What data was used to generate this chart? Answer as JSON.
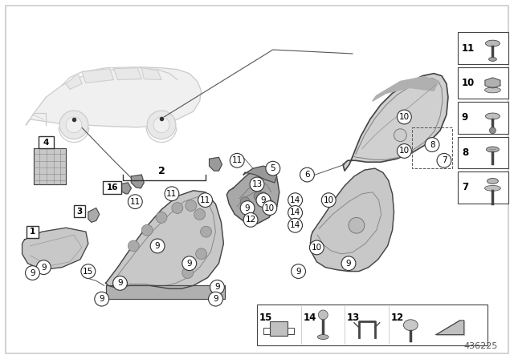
{
  "bg": "#ffffff",
  "lc": "#444444",
  "part_fill": "#b8b8b8",
  "part_fill2": "#c8c8c8",
  "part_fill3": "#d0d0d0",
  "diagram_number": "436225",
  "car_line_color": "#aaaaaa",
  "fastener_boxes": [
    {
      "id": "11",
      "fy": 0.825
    },
    {
      "id": "10",
      "fy": 0.72
    },
    {
      "id": "9",
      "fy": 0.615
    },
    {
      "id": "8",
      "fy": 0.51
    },
    {
      "id": "7",
      "fy": 0.405
    }
  ],
  "bottom_boxes": [
    {
      "id": "15",
      "bx": 0.51
    },
    {
      "id": "14",
      "bx": 0.575
    },
    {
      "id": "13",
      "bx": 0.643
    },
    {
      "id": "12",
      "bx": 0.71
    }
  ]
}
